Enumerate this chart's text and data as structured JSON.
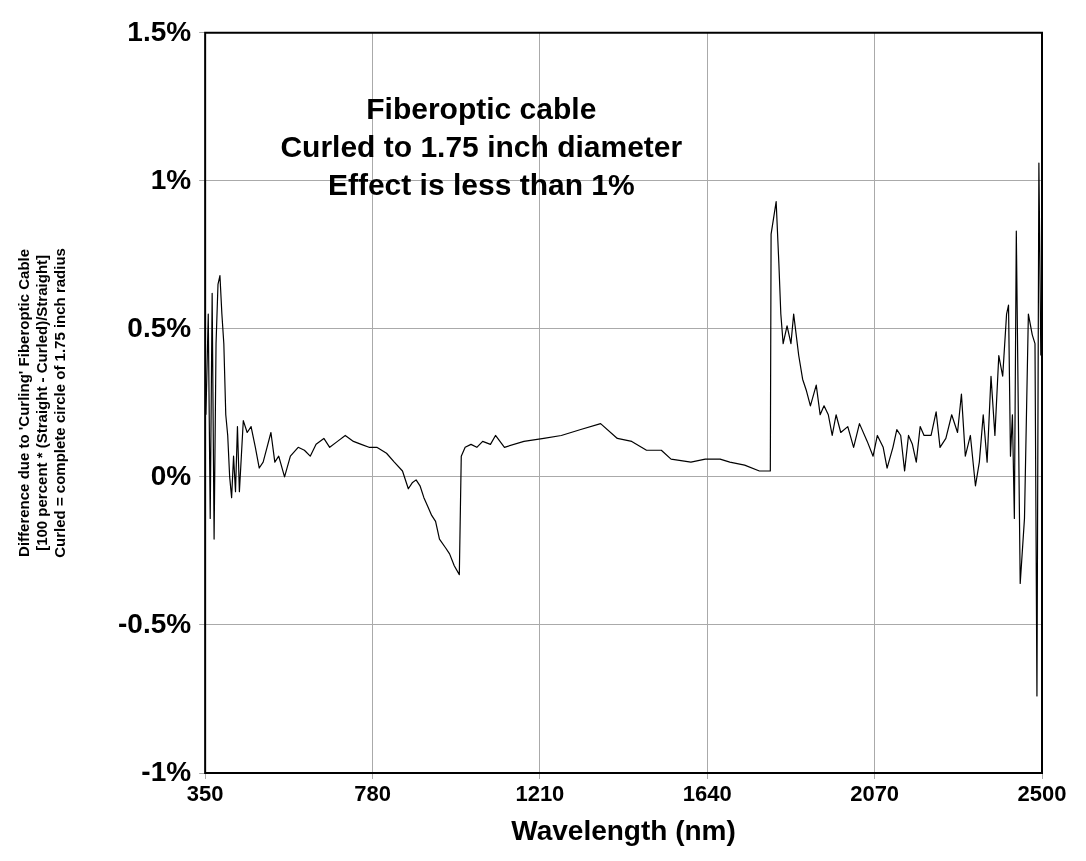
{
  "chart_data": {
    "type": "line",
    "xlabel": "Wavelength (nm)",
    "ylabel": [
      "Difference due to 'Curling' Fiberoptic Cable",
      "[100 percent * (Straight - Curled)/Straight]",
      "Curled = complete circle of 1.75 inch radius"
    ],
    "annotations": [
      "Fiberoptic cable",
      "Curled to 1.75 inch diameter",
      "Effect is less than 1%"
    ],
    "xlim": [
      350,
      2500
    ],
    "xticks": [
      350,
      780,
      1210,
      1640,
      2070,
      2500
    ],
    "ylim": [
      -1,
      1.5
    ],
    "yticks": [
      {
        "value": -1,
        "label": "-1%"
      },
      {
        "value": -0.5,
        "label": "-0.5%"
      },
      {
        "value": 0,
        "label": "0%"
      },
      {
        "value": 0.5,
        "label": "0.5%"
      },
      {
        "value": 1,
        "label": "1%"
      },
      {
        "value": 1.5,
        "label": "1.5%"
      }
    ],
    "grid": true,
    "marker": "none",
    "line_style": "solid",
    "series": [
      {
        "color": "#000000",
        "x": [
          352,
          358,
          363,
          368,
          373,
          378,
          383,
          388,
          393,
          398,
          403,
          408,
          413,
          418,
          423,
          428,
          433,
          438,
          443,
          448,
          458,
          468,
          479,
          489,
          499,
          509,
          519,
          529,
          539,
          554,
          569,
          589,
          605,
          620,
          635,
          655,
          670,
          690,
          710,
          731,
          751,
          771,
          791,
          816,
          836,
          857,
          872,
          882,
          892,
          902,
          912,
          922,
          932,
          942,
          952,
          968,
          978,
          990,
          1003,
          1008,
          1018,
          1033,
          1048,
          1063,
          1083,
          1096,
          1119,
          1169,
          1220,
          1265,
          1315,
          1366,
          1409,
          1446,
          1484,
          1522,
          1547,
          1598,
          1635,
          1673,
          1698,
          1736,
          1774,
          1802,
          1804,
          1817,
          1824,
          1829,
          1835,
          1845,
          1855,
          1862,
          1875,
          1885,
          1895,
          1905,
          1920,
          1930,
          1940,
          1951,
          1961,
          1971,
          1983,
          2001,
          2016,
          2031,
          2051,
          2066,
          2077,
          2092,
          2102,
          2117,
          2127,
          2137,
          2147,
          2157,
          2167,
          2177,
          2187,
          2197,
          2215,
          2228,
          2238,
          2253,
          2268,
          2283,
          2293,
          2303,
          2316,
          2329,
          2339,
          2349,
          2359,
          2369,
          2379,
          2389,
          2399,
          2409,
          2414,
          2419,
          2424,
          2429,
          2434,
          2444,
          2455,
          2465,
          2475,
          2482,
          2487,
          2492,
          2497
        ],
        "values": [
          0.21,
          0.55,
          -0.14,
          0.62,
          -0.21,
          0.45,
          0.65,
          0.68,
          0.55,
          0.45,
          0.21,
          0.14,
          0.0,
          -0.07,
          0.07,
          -0.05,
          0.17,
          -0.05,
          0.07,
          0.19,
          0.15,
          0.17,
          0.1,
          0.03,
          0.05,
          0.1,
          0.15,
          0.05,
          0.07,
          0.0,
          0.07,
          0.1,
          0.09,
          0.07,
          0.11,
          0.13,
          0.1,
          0.12,
          0.14,
          0.12,
          0.11,
          0.1,
          0.1,
          0.08,
          0.05,
          0.02,
          -0.04,
          -0.02,
          -0.01,
          -0.03,
          -0.07,
          -0.1,
          -0.13,
          -0.15,
          -0.21,
          -0.24,
          -0.26,
          -0.3,
          -0.33,
          0.07,
          0.1,
          0.11,
          0.1,
          0.12,
          0.11,
          0.14,
          0.1,
          0.12,
          0.13,
          0.14,
          0.16,
          0.18,
          0.13,
          0.12,
          0.09,
          0.09,
          0.06,
          0.05,
          0.06,
          0.06,
          0.05,
          0.04,
          0.02,
          0.02,
          0.82,
          0.93,
          0.72,
          0.55,
          0.45,
          0.51,
          0.45,
          0.55,
          0.41,
          0.33,
          0.29,
          0.24,
          0.31,
          0.21,
          0.24,
          0.21,
          0.14,
          0.21,
          0.15,
          0.17,
          0.1,
          0.18,
          0.12,
          0.07,
          0.14,
          0.1,
          0.03,
          0.1,
          0.16,
          0.14,
          0.02,
          0.14,
          0.11,
          0.05,
          0.17,
          0.14,
          0.14,
          0.22,
          0.1,
          0.13,
          0.21,
          0.15,
          0.28,
          0.07,
          0.14,
          -0.03,
          0.05,
          0.21,
          0.05,
          0.34,
          0.14,
          0.41,
          0.34,
          0.55,
          0.58,
          0.07,
          0.21,
          -0.14,
          0.83,
          -0.36,
          -0.14,
          0.55,
          0.48,
          0.45,
          -0.74,
          1.06,
          0.41
        ]
      }
    ]
  }
}
